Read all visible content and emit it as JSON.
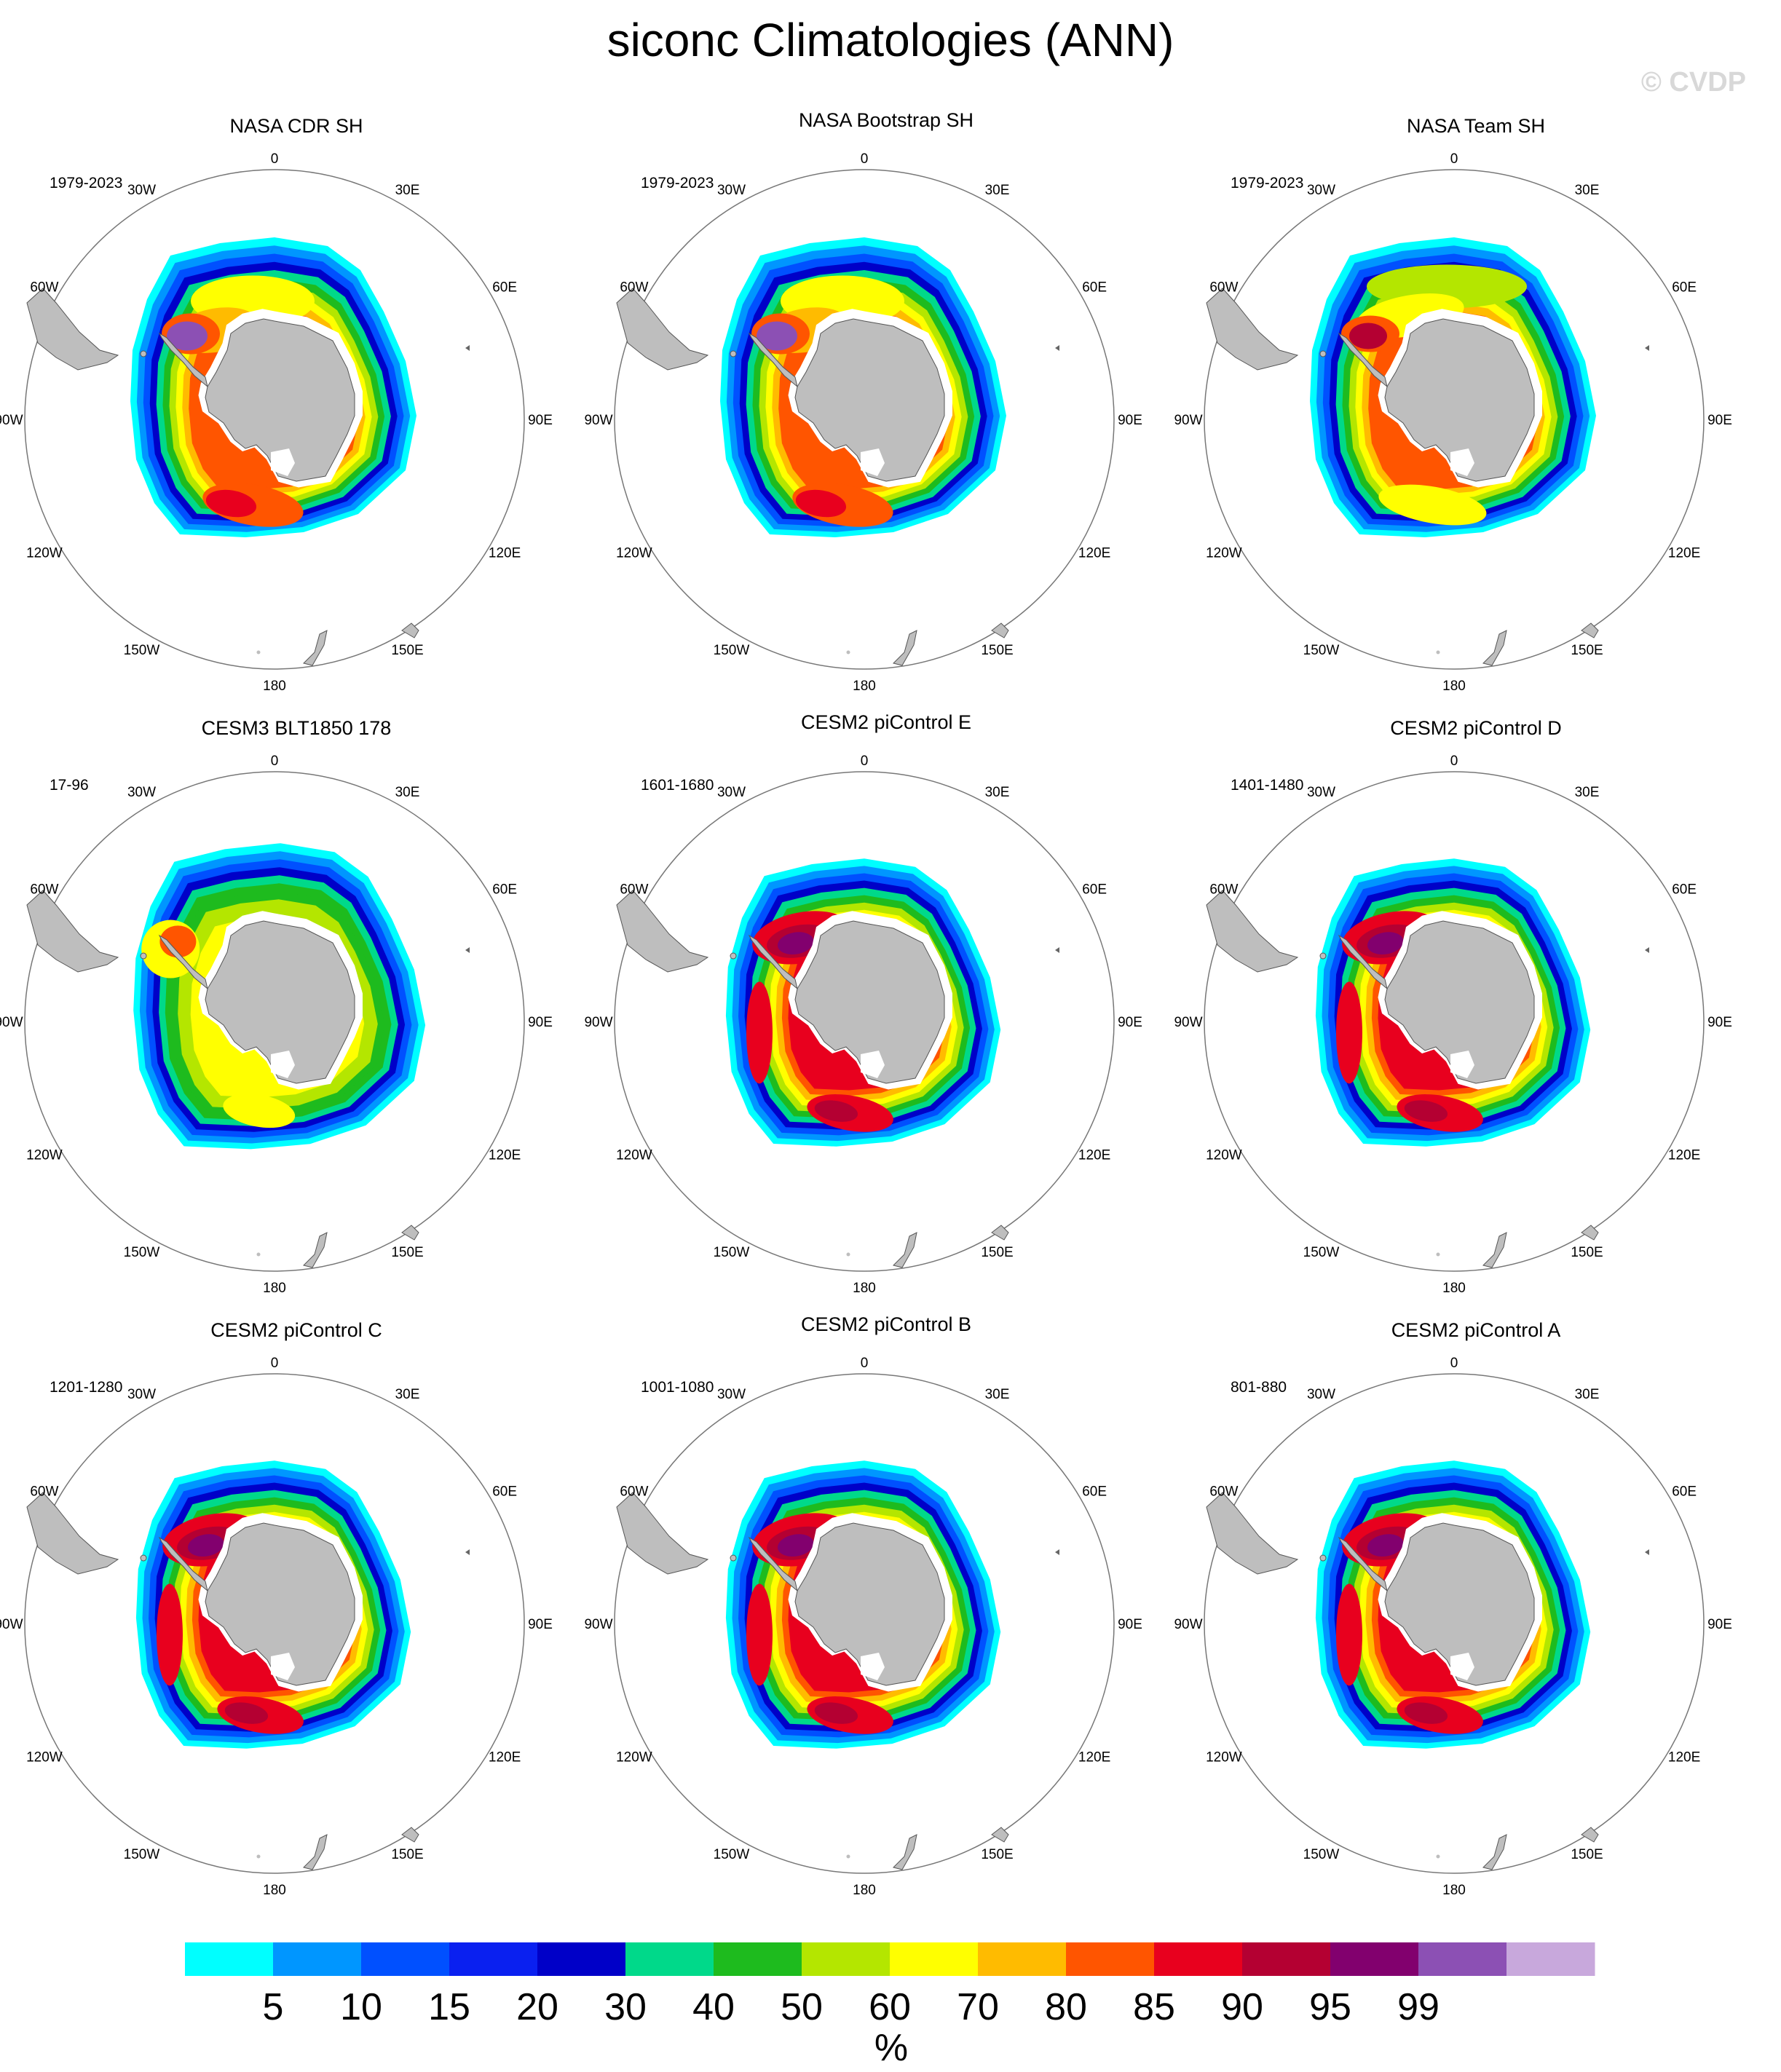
{
  "title": "siconc Climatologies (ANN)",
  "watermark": "© CVDP",
  "longitude_labels": [
    "0",
    "30E",
    "60E",
    "90E",
    "120E",
    "150E",
    "180",
    "150W",
    "120W",
    "90W",
    "60W",
    "30W"
  ],
  "panels": [
    {
      "title": "NASA CDR SH",
      "period": "1979-2023"
    },
    {
      "title": "NASA Bootstrap SH",
      "period": "1979-2023"
    },
    {
      "title": "NASA Team SH",
      "period": "1979-2023"
    },
    {
      "title": "CESM3 BLT1850 178",
      "period": "17-96"
    },
    {
      "title": "CESM2 piControl E",
      "period": "1601-1680"
    },
    {
      "title": "CESM2 piControl D",
      "period": "1401-1480"
    },
    {
      "title": "CESM2 piControl C",
      "period": "1201-1280"
    },
    {
      "title": "CESM2 piControl B",
      "period": "1001-1080"
    },
    {
      "title": "CESM2 piControl A",
      "period": "801-880"
    }
  ],
  "colorbar": {
    "unit": "%",
    "labels": [
      "5",
      "10",
      "15",
      "20",
      "30",
      "40",
      "50",
      "60",
      "70",
      "80",
      "85",
      "90",
      "95",
      "99"
    ],
    "colors": [
      "#00ffff",
      "#0096ff",
      "#0050ff",
      "#0a20f0",
      "#0000c8",
      "#00d98a",
      "#1ebb1e",
      "#b4e600",
      "#ffff00",
      "#ffbb00",
      "#ff5500",
      "#e8001e",
      "#b40032",
      "#82006e",
      "#8c50b4",
      "#c8a8dc"
    ]
  },
  "land_color": "#bebebe"
}
